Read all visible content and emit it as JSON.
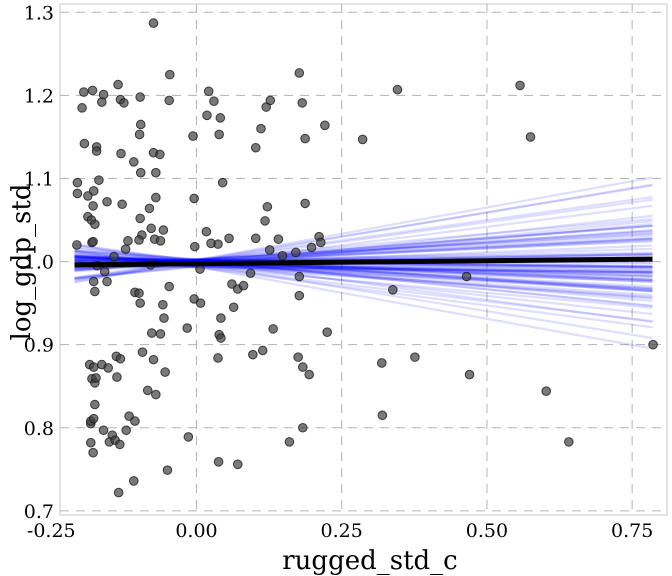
{
  "chart_data": {
    "type": "scatter",
    "title": "",
    "xlabel": "rugged_std_c",
    "ylabel": "log_gdp_std",
    "xlim": [
      -0.235,
      0.81
    ],
    "ylim": [
      0.695,
      1.31
    ],
    "grid": true,
    "x_ticks": [
      -0.25,
      0.0,
      0.25,
      0.5,
      0.75
    ],
    "x_tick_labels": [
      "-0.25",
      "0.00",
      "0.25",
      "0.50",
      "0.75"
    ],
    "y_ticks": [
      0.7,
      0.8,
      0.9,
      1.0,
      1.1,
      1.2,
      1.3
    ],
    "y_tick_labels": [
      "0.7",
      "0.8",
      "0.9",
      "1.0",
      "1.1",
      "1.2",
      "1.3"
    ],
    "point_color": "#404040",
    "sample_line_color": "#0000ff",
    "mean_line_color": "#000000",
    "points": [
      {
        "x": -0.074,
        "y": 1.287
      },
      {
        "x": -0.194,
        "y": 1.204
      },
      {
        "x": -0.179,
        "y": 1.206
      },
      {
        "x": -0.16,
        "y": 1.201
      },
      {
        "x": -0.135,
        "y": 1.213
      },
      {
        "x": -0.046,
        "y": 1.225
      },
      {
        "x": 0.021,
        "y": 1.205
      },
      {
        "x": 0.177,
        "y": 1.227
      },
      {
        "x": 0.346,
        "y": 1.207
      },
      {
        "x": 0.557,
        "y": 1.212
      },
      {
        "x": -0.197,
        "y": 1.185
      },
      {
        "x": -0.163,
        "y": 1.192
      },
      {
        "x": -0.131,
        "y": 1.195
      },
      {
        "x": -0.125,
        "y": 1.191
      },
      {
        "x": -0.097,
        "y": 1.198
      },
      {
        "x": -0.047,
        "y": 1.194
      },
      {
        "x": 0.03,
        "y": 1.193
      },
      {
        "x": 0.127,
        "y": 1.194
      },
      {
        "x": 0.12,
        "y": 1.186
      },
      {
        "x": 0.182,
        "y": 1.191
      },
      {
        "x": -0.096,
        "y": 1.165
      },
      {
        "x": 0.018,
        "y": 1.176
      },
      {
        "x": 0.041,
        "y": 1.173
      },
      {
        "x": 0.111,
        "y": 1.16
      },
      {
        "x": 0.221,
        "y": 1.164
      },
      {
        "x": 0.039,
        "y": 1.153
      },
      {
        "x": -0.006,
        "y": 1.151
      },
      {
        "x": 0.575,
        "y": 1.15
      },
      {
        "x": -0.193,
        "y": 1.142
      },
      {
        "x": -0.172,
        "y": 1.138
      },
      {
        "x": -0.172,
        "y": 1.133
      },
      {
        "x": -0.098,
        "y": 1.153
      },
      {
        "x": -0.13,
        "y": 1.13
      },
      {
        "x": -0.074,
        "y": 1.131
      },
      {
        "x": -0.063,
        "y": 1.129
      },
      {
        "x": 0.102,
        "y": 1.137
      },
      {
        "x": 0.187,
        "y": 1.148
      },
      {
        "x": 0.286,
        "y": 1.147
      },
      {
        "x": -0.108,
        "y": 1.12
      },
      {
        "x": -0.07,
        "y": 1.107
      },
      {
        "x": -0.096,
        "y": 1.107
      },
      {
        "x": -0.205,
        "y": 1.095
      },
      {
        "x": -0.168,
        "y": 1.098
      },
      {
        "x": -0.177,
        "y": 1.085
      },
      {
        "x": 0.045,
        "y": 1.095
      },
      {
        "x": -0.205,
        "y": 1.082
      },
      {
        "x": -0.187,
        "y": 1.079
      },
      {
        "x": -0.178,
        "y": 1.067
      },
      {
        "x": -0.154,
        "y": 1.072
      },
      {
        "x": -0.128,
        "y": 1.069
      },
      {
        "x": -0.004,
        "y": 1.076
      },
      {
        "x": -0.07,
        "y": 1.077
      },
      {
        "x": -0.081,
        "y": 1.064
      },
      {
        "x": 0.122,
        "y": 1.066
      },
      {
        "x": 0.187,
        "y": 1.07
      },
      {
        "x": -0.187,
        "y": 1.054
      },
      {
        "x": -0.181,
        "y": 1.05
      },
      {
        "x": -0.175,
        "y": 1.045
      },
      {
        "x": -0.097,
        "y": 1.052
      },
      {
        "x": 0.118,
        "y": 1.049
      },
      {
        "x": -0.078,
        "y": 1.04
      },
      {
        "x": -0.057,
        "y": 1.038
      },
      {
        "x": -0.094,
        "y": 1.032
      },
      {
        "x": -0.118,
        "y": 1.025
      },
      {
        "x": -0.099,
        "y": 1.026
      },
      {
        "x": -0.072,
        "y": 1.027
      },
      {
        "x": -0.062,
        "y": 1.025
      },
      {
        "x": 0.017,
        "y": 1.036
      },
      {
        "x": 0.056,
        "y": 1.028
      },
      {
        "x": 0.037,
        "y": 1.021
      },
      {
        "x": 0.025,
        "y": 1.022
      },
      {
        "x": 0.141,
        "y": 1.027
      },
      {
        "x": 0.102,
        "y": 1.028
      },
      {
        "x": 0.211,
        "y": 1.03
      },
      {
        "x": 0.214,
        "y": 1.023
      },
      {
        "x": 0.198,
        "y": 1.017
      },
      {
        "x": -0.18,
        "y": 1.023
      },
      {
        "x": -0.178,
        "y": 1.024
      },
      {
        "x": -0.206,
        "y": 1.02
      },
      {
        "x": -0.122,
        "y": 1.015
      },
      {
        "x": -0.142,
        "y": 1.006
      },
      {
        "x": -0.003,
        "y": 1.018
      },
      {
        "x": 0.126,
        "y": 1.014
      },
      {
        "x": 0.148,
        "y": 1.007
      },
      {
        "x": 0.171,
        "y": 1.011
      },
      {
        "x": -0.079,
        "y": 0.996
      },
      {
        "x": -0.171,
        "y": 0.995
      },
      {
        "x": -0.158,
        "y": 0.988
      },
      {
        "x": -0.177,
        "y": 0.976
      },
      {
        "x": -0.154,
        "y": 0.976
      },
      {
        "x": -0.175,
        "y": 0.964
      },
      {
        "x": 0.006,
        "y": 0.991
      },
      {
        "x": 0.093,
        "y": 0.986
      },
      {
        "x": 0.061,
        "y": 0.973
      },
      {
        "x": 0.071,
        "y": 0.967
      },
      {
        "x": 0.081,
        "y": 0.971
      },
      {
        "x": 0.177,
        "y": 0.982
      },
      {
        "x": 0.465,
        "y": 0.982
      },
      {
        "x": -0.106,
        "y": 0.963
      },
      {
        "x": -0.099,
        "y": 0.962
      },
      {
        "x": -0.047,
        "y": 0.97
      },
      {
        "x": 0.177,
        "y": 0.959
      },
      {
        "x": 0.338,
        "y": 0.966
      },
      {
        "x": -0.097,
        "y": 0.95
      },
      {
        "x": -0.058,
        "y": 0.948
      },
      {
        "x": -0.004,
        "y": 0.955
      },
      {
        "x": 0.064,
        "y": 0.945
      },
      {
        "x": 0.007,
        "y": 0.95
      },
      {
        "x": -0.056,
        "y": 0.932
      },
      {
        "x": 0.042,
        "y": 0.932
      },
      {
        "x": -0.077,
        "y": 0.914
      },
      {
        "x": -0.062,
        "y": 0.913
      },
      {
        "x": -0.016,
        "y": 0.92
      },
      {
        "x": 0.039,
        "y": 0.912
      },
      {
        "x": 0.132,
        "y": 0.919
      },
      {
        "x": 0.225,
        "y": 0.915
      },
      {
        "x": 0.042,
        "y": 0.908
      },
      {
        "x": -0.093,
        "y": 0.891
      },
      {
        "x": -0.138,
        "y": 0.886
      },
      {
        "x": -0.131,
        "y": 0.883
      },
      {
        "x": -0.074,
        "y": 0.882
      },
      {
        "x": 0.037,
        "y": 0.884
      },
      {
        "x": 0.097,
        "y": 0.888
      },
      {
        "x": 0.114,
        "y": 0.893
      },
      {
        "x": 0.175,
        "y": 0.885
      },
      {
        "x": 0.183,
        "y": 0.873
      },
      {
        "x": 0.376,
        "y": 0.885
      },
      {
        "x": 0.319,
        "y": 0.878
      },
      {
        "x": 0.786,
        "y": 0.9
      },
      {
        "x": -0.184,
        "y": 0.876
      },
      {
        "x": -0.177,
        "y": 0.873
      },
      {
        "x": -0.163,
        "y": 0.876
      },
      {
        "x": -0.152,
        "y": 0.872
      },
      {
        "x": -0.18,
        "y": 0.859
      },
      {
        "x": -0.175,
        "y": 0.854
      },
      {
        "x": -0.173,
        "y": 0.86
      },
      {
        "x": -0.137,
        "y": 0.861
      },
      {
        "x": -0.054,
        "y": 0.867
      },
      {
        "x": 0.194,
        "y": 0.864
      },
      {
        "x": 0.47,
        "y": 0.864
      },
      {
        "x": -0.07,
        "y": 0.84
      },
      {
        "x": -0.084,
        "y": 0.845
      },
      {
        "x": 0.602,
        "y": 0.844
      },
      {
        "x": -0.175,
        "y": 0.828
      },
      {
        "x": -0.182,
        "y": 0.805
      },
      {
        "x": -0.182,
        "y": 0.808
      },
      {
        "x": -0.177,
        "y": 0.811
      },
      {
        "x": -0.116,
        "y": 0.814
      },
      {
        "x": -0.106,
        "y": 0.808
      },
      {
        "x": 0.32,
        "y": 0.815
      },
      {
        "x": -0.16,
        "y": 0.797
      },
      {
        "x": -0.145,
        "y": 0.791
      },
      {
        "x": -0.121,
        "y": 0.797
      },
      {
        "x": 0.183,
        "y": 0.8
      },
      {
        "x": -0.15,
        "y": 0.783
      },
      {
        "x": -0.182,
        "y": 0.782
      },
      {
        "x": -0.14,
        "y": 0.785
      },
      {
        "x": -0.132,
        "y": 0.78
      },
      {
        "x": -0.014,
        "y": 0.789
      },
      {
        "x": 0.16,
        "y": 0.783
      },
      {
        "x": 0.641,
        "y": 0.783
      },
      {
        "x": -0.178,
        "y": 0.77
      },
      {
        "x": 0.038,
        "y": 0.759
      },
      {
        "x": 0.071,
        "y": 0.756
      },
      {
        "x": -0.05,
        "y": 0.749
      },
      {
        "x": -0.108,
        "y": 0.736
      },
      {
        "x": -0.134,
        "y": 0.722
      }
    ],
    "mean_line": {
      "x": [
        -0.21,
        0.785
      ],
      "y": [
        0.996,
        1.003
      ]
    },
    "sample_lines": {
      "count": 90,
      "x": [
        -0.21,
        0.785
      ],
      "intercept_range": [
        0.993,
        1.003
      ],
      "slope_range": [
        -0.145,
        0.145
      ]
    }
  }
}
